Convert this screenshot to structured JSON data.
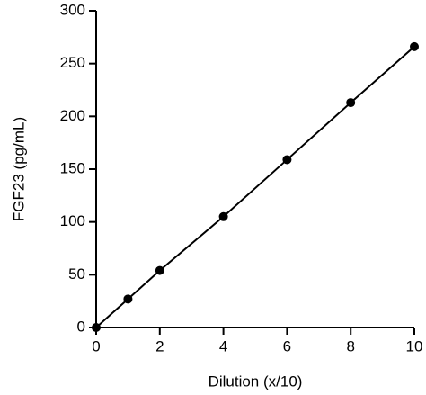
{
  "chart_data": {
    "type": "line",
    "x_label": "Dilution (x/10)",
    "y_label": "FGF23  (pg/mL)",
    "x": [
      0,
      1,
      2,
      4,
      6,
      8,
      10
    ],
    "series": [
      {
        "color": "#000000",
        "values": [
          0,
          27,
          54,
          105,
          159,
          213,
          266
        ]
      }
    ],
    "markers": true,
    "xlim": [
      0,
      10
    ],
    "xticks": [
      0,
      2,
      4,
      6,
      8,
      10
    ],
    "ylim": [
      0,
      300
    ],
    "yticks": [
      0,
      50,
      100,
      150,
      200,
      250,
      300
    ],
    "grid": false
  }
}
